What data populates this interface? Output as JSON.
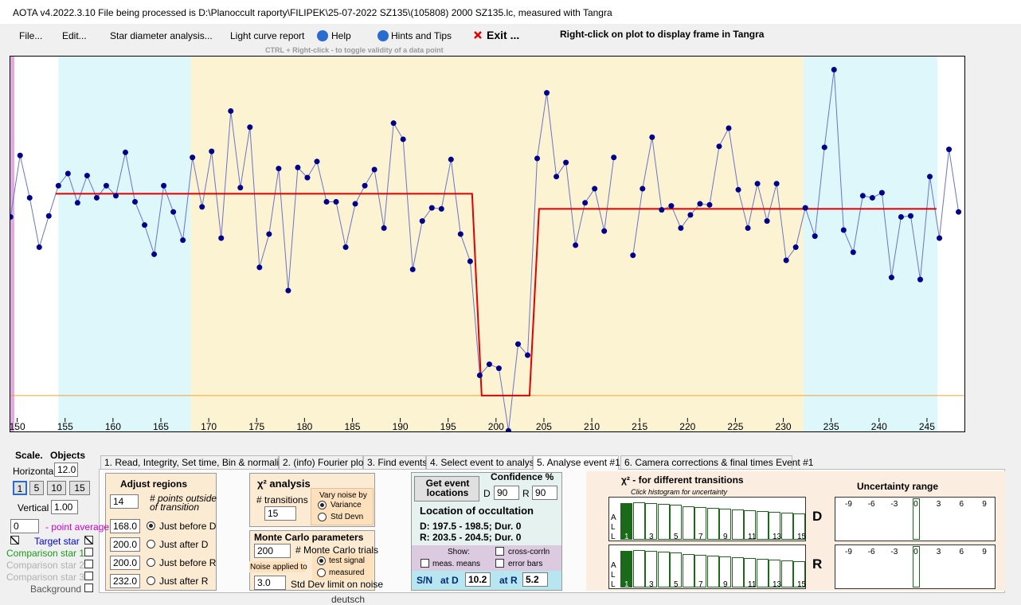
{
  "title_bar": {
    "text": "AOTA v4.2022.3.10    File being processed is D:\\Planoccult raporty\\FILIPEK\\25-07-2022 SZ135\\(105808) 2000 SZ135.lc, measured with Tangra"
  },
  "menu": {
    "items": [
      "File...",
      "Edit...",
      "Star diameter analysis...",
      "Light curve report",
      "Help",
      "Hints and Tips",
      "Exit ..."
    ],
    "note": "Right-click on plot to display frame in Tangra",
    "hint": "CTRL + Right-click  -  to toggle validity of a data point"
  },
  "chart_data": {
    "type": "line",
    "xlim": [
      149.2,
      249.0
    ],
    "ylim": [
      -18.2,
      168.4
    ],
    "xticks": [
      150,
      155,
      160,
      165,
      170,
      175,
      180,
      185,
      190,
      195,
      200,
      205,
      210,
      215,
      220,
      225,
      230,
      235,
      240,
      245
    ],
    "x": [
      149.3,
      150.3,
      151.3,
      152.3,
      153.3,
      154.3,
      155.3,
      156.3,
      157.3,
      158.3,
      159.3,
      160.3,
      161.3,
      162.3,
      163.3,
      164.3,
      165.3,
      166.3,
      167.3,
      168.3,
      169.3,
      170.3,
      171.3,
      172.3,
      173.3,
      174.3,
      175.3,
      176.3,
      177.3,
      178.3,
      179.3,
      180.3,
      181.3,
      182.3,
      183.3,
      184.3,
      185.3,
      186.3,
      187.3,
      188.3,
      189.3,
      190.3,
      191.3,
      192.3,
      193.3,
      194.3,
      195.3,
      196.3,
      197.3,
      198.3,
      199.3,
      200.3,
      201.3,
      202.3,
      203.3,
      204.3,
      205.3,
      206.3,
      207.3,
      208.3,
      209.3,
      210.3,
      211.3,
      212.3,
      213.3,
      214.3,
      215.3,
      216.3,
      217.3,
      218.3,
      219.3,
      220.3,
      221.3,
      222.3,
      223.3,
      224.3,
      225.3,
      226.3,
      227.3,
      228.3,
      229.3,
      230.3,
      231.3,
      232.3,
      233.3,
      234.3,
      235.3,
      236.3,
      237.3,
      238.3,
      239.3,
      240.3,
      241.3,
      242.3,
      243.3,
      244.3,
      245.3,
      246.3,
      247.3,
      248.3
    ],
    "series": [
      {
        "color": "#00008b",
        "values": [
          88.5,
          119,
          98,
          73.5,
          89,
          104,
          110,
          95.5,
          109,
          98,
          104,
          99,
          120.5,
          96,
          84.5,
          70,
          104,
          91,
          77,
          118,
          93.5,
          121,
          78,
          141,
          103,
          133,
          63.5,
          80,
          112.5,
          52,
          113,
          108,
          116,
          96,
          96,
          73.5,
          95,
          104,
          112,
          83,
          135,
          127,
          62.5,
          86.5,
          93,
          92.5,
          117,
          80,
          66.5,
          10,
          15.5,
          13.5,
          -17.5,
          25.5,
          20,
          117.5,
          150,
          108.5,
          115.5,
          74.5,
          95.5,
          102.5,
          81.5,
          118,
          null,
          69.5,
          102.5,
          128,
          92,
          94,
          83,
          89.5,
          95,
          94.5,
          123.5,
          132.5,
          102,
          83,
          105,
          86.5,
          105,
          67,
          73.5,
          93,
          79,
          123,
          161.5,
          82,
          71,
          99,
          98,
          100.5,
          58.5,
          88.5,
          89,
          57.5,
          108.5,
          78,
          122,
          91
        ]
      },
      {
        "color": "#e00000",
        "x": [
          154,
          197.5,
          198.5,
          203.5,
          204.5,
          246
        ],
        "values": [
          100,
          100,
          0,
          0,
          92.5,
          92.5
        ]
      }
    ],
    "regions": [
      {
        "start": 154.3,
        "end": 168.1,
        "color": "#ddf7fb"
      },
      {
        "start": 168.1,
        "end": 232.1,
        "color": "#fcf3d3"
      },
      {
        "start": 232.1,
        "end": 246.1,
        "color": "#ddf7fb"
      }
    ],
    "reference_line": {
      "value": 0,
      "color": "#f0a030"
    }
  },
  "left_panel": {
    "scale": "Scale.",
    "objects": "Objects",
    "horizontal": "Horizontal",
    "horizontal_value": "12.0",
    "steps": [
      "1",
      "5",
      "10",
      "15"
    ],
    "vertical": "Vertical",
    "vertical_value": "1.00",
    "average_value": "0",
    "average_label": "- point average",
    "stars": [
      "Target star",
      "Comparison star 1",
      "Comparison star 2",
      "Comparison star 3",
      "Background"
    ],
    "footer": "deutsch"
  },
  "tabs": [
    "1. Read, Integrity, Set time, Bin & normalise",
    "2. (info)  Fourier plot",
    "3. Find events",
    "4. Select event to analyse",
    "5. Analyse event #1",
    "6. Camera corrections & final times Event #1"
  ],
  "adjust_regions": {
    "title": "Adjust regions",
    "points": "14",
    "points_label": "# points outside",
    "points_label2": "of transition",
    "fields": [
      {
        "value": "168.0",
        "label": "Just before D"
      },
      {
        "value": "200.0",
        "label": "Just after D"
      },
      {
        "value": "200.0",
        "label": "Just before R"
      },
      {
        "value": "232.0",
        "label": "Just after R"
      }
    ]
  },
  "chi2_analysis": {
    "title": "χ² analysis",
    "transitions_label": "# transitions",
    "transitions": "15",
    "vary_title": "Vary noise by",
    "options": [
      "Variance",
      "Std Devn"
    ]
  },
  "monte_carlo": {
    "title": "Monte Carlo parameters",
    "trials": "200",
    "trials_label": "# Monte Carlo trials",
    "noise_title": "Noise applied to",
    "noise_options": [
      "test signal",
      "measured"
    ],
    "limit": "3.0",
    "limit_label": "Std Dev limit on noise"
  },
  "event": {
    "button": "Get event locations",
    "confidence_title": "Confidence %",
    "d_label": "D",
    "d_value": "90",
    "r_label": "R",
    "r_value": "90",
    "location_title": "Location of occultation",
    "d_line": "D: 197.5 - 198.5; Dur. 0",
    "r_line": "R: 203.5 - 204.5; Dur. 0",
    "show_title": "Show:",
    "show_options": [
      "meas. means",
      "cross-corrln",
      "error bars"
    ],
    "sn_label": "S/N",
    "at_d_label": "at D",
    "at_d": "10.2",
    "at_r_label": "at R",
    "at_r": "5.2"
  },
  "chi2_transitions": {
    "title": "χ² - for different transitions",
    "subtitle": "Click histogram for uncertainty",
    "side_label": [
      "A",
      "L",
      "L"
    ],
    "ticks": [
      "1",
      "3",
      "5",
      "7",
      "9",
      "11",
      "13",
      "15"
    ],
    "rows": [
      "D",
      "R"
    ]
  },
  "uncertainty": {
    "title": "Uncertainty range",
    "ticks": [
      "-9",
      "-6",
      "-3",
      "0",
      "3",
      "6",
      "9"
    ]
  }
}
